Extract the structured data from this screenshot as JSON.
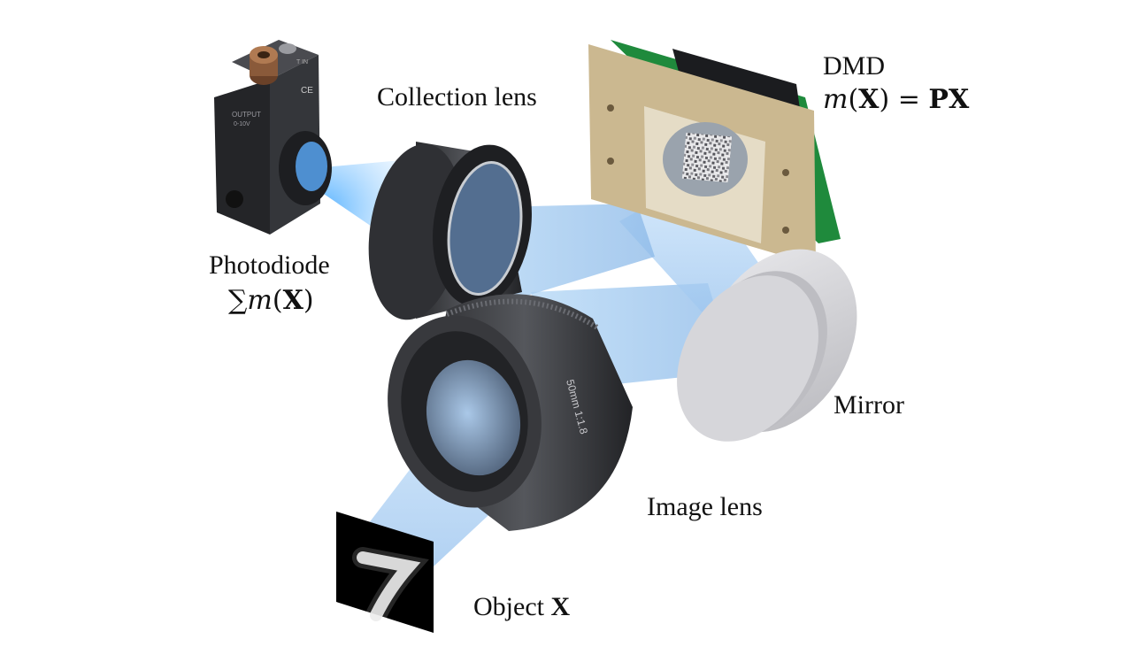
{
  "labels": {
    "collection_lens": "Collection lens",
    "dmd": "DMD",
    "dmd_eq": {
      "m": "m",
      "lp": "(",
      "x": "X",
      "rp": ")",
      "eq": " = ",
      "px": "PX"
    },
    "photodiode": "Photodiode",
    "photodiode_eq": {
      "sum": "∑",
      "m": "m",
      "lp": "(",
      "x": "X",
      "rp": ")"
    },
    "mirror": "Mirror",
    "image_lens": "Image lens",
    "object": "Object",
    "object_var": "X",
    "sensor_text": {
      "output": "OUTPUT",
      "range": "0-10V",
      "tin": "T IN",
      "ce": "CE"
    },
    "lens_text": "50mm  1:1.8"
  },
  "colors": {
    "beam": "#9cc8f0",
    "dmd_frame": "#c8b48f",
    "pcb": "#1f8a3c",
    "lens_body": "#3a3b3f",
    "sensor_body": "#2b2c30",
    "connector": "#8a5a3a",
    "mirror": "#dcdce0"
  },
  "icons": [
    "photodiode-sensor-icon",
    "collection-lens-icon",
    "dmd-icon",
    "mirror-icon",
    "image-lens-icon",
    "object-digit-icon"
  ]
}
